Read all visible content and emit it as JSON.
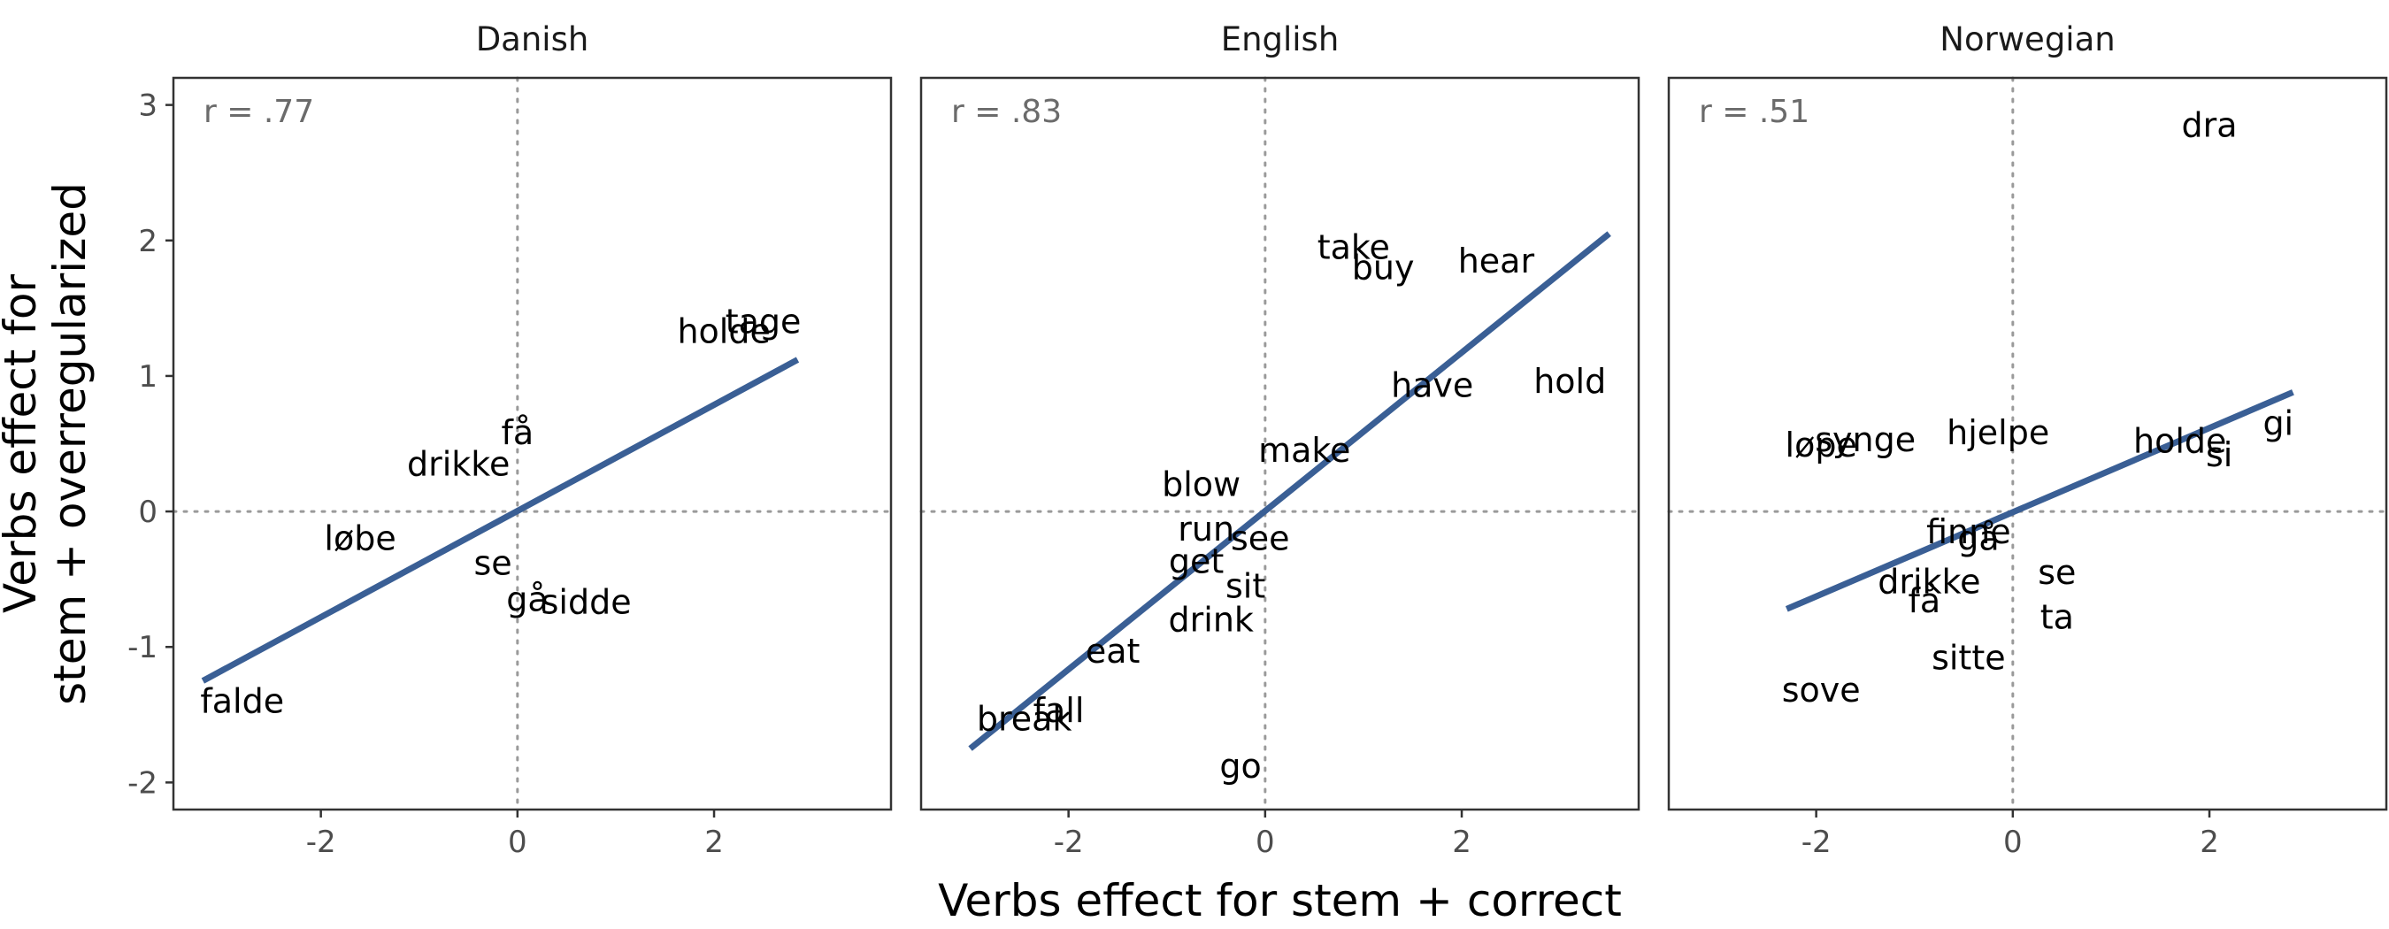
{
  "chart_data": {
    "type": "scatter",
    "xlabel": "Verbs effect for stem + correct",
    "ylabel": [
      "Verbs effect for",
      "stem + overregularized"
    ],
    "xlim": [
      -3.5,
      3.8
    ],
    "ylim": [
      -2.2,
      3.2
    ],
    "x_ticks": [
      -2,
      0,
      2
    ],
    "y_ticks": [
      -2,
      -1,
      0,
      1,
      2,
      3
    ],
    "tick_labels": {
      "-2": "-2",
      "-1": "-1",
      "0": "0",
      "1": "1",
      "2": "2",
      "3": "3"
    },
    "grid": false,
    "reference_lines": [
      0
    ],
    "colors": {
      "fit_line": "#3a5f95",
      "reference_line": "#9a9a9a",
      "panel_border": "#333333"
    },
    "panels": [
      {
        "name": "Danish",
        "r_label": "r = .77",
        "fit": {
          "x": [
            -3.2,
            2.85
          ],
          "y": [
            -1.25,
            1.12
          ]
        },
        "points": [
          {
            "label": "tage",
            "x": 2.5,
            "y": 1.4
          },
          {
            "label": "holde",
            "x": 2.1,
            "y": 1.33
          },
          {
            "label": "få",
            "x": 0.0,
            "y": 0.58
          },
          {
            "label": "drikke",
            "x": -0.6,
            "y": 0.35
          },
          {
            "label": "løbe",
            "x": -1.6,
            "y": -0.2
          },
          {
            "label": "se",
            "x": -0.25,
            "y": -0.38
          },
          {
            "label": "gå",
            "x": 0.1,
            "y": -0.65
          },
          {
            "label": "sidde",
            "x": 0.7,
            "y": -0.67
          },
          {
            "label": "falde",
            "x": -2.8,
            "y": -1.4
          }
        ]
      },
      {
        "name": "English",
        "r_label": "r = .83",
        "fit": {
          "x": [
            -3.0,
            3.5
          ],
          "y": [
            -1.75,
            2.05
          ]
        },
        "points": [
          {
            "label": "take",
            "x": 0.9,
            "y": 1.95
          },
          {
            "label": "buy",
            "x": 1.2,
            "y": 1.8
          },
          {
            "label": "hear",
            "x": 2.35,
            "y": 1.85
          },
          {
            "label": "have",
            "x": 1.7,
            "y": 0.93
          },
          {
            "label": "hold",
            "x": 3.1,
            "y": 0.96
          },
          {
            "label": "make",
            "x": 0.4,
            "y": 0.45
          },
          {
            "label": "blow",
            "x": -0.65,
            "y": 0.2
          },
          {
            "label": "run",
            "x": -0.6,
            "y": -0.13
          },
          {
            "label": "see",
            "x": -0.05,
            "y": -0.2
          },
          {
            "label": "get",
            "x": -0.7,
            "y": -0.37
          },
          {
            "label": "sit",
            "x": -0.2,
            "y": -0.55
          },
          {
            "label": "drink",
            "x": -0.55,
            "y": -0.8
          },
          {
            "label": "eat",
            "x": -1.55,
            "y": -1.03
          },
          {
            "label": "fall",
            "x": -2.1,
            "y": -1.47
          },
          {
            "label": "break",
            "x": -2.45,
            "y": -1.53
          },
          {
            "label": "go",
            "x": -0.25,
            "y": -1.88
          }
        ]
      },
      {
        "name": "Norwegian",
        "r_label": "r = .51",
        "fit": {
          "x": [
            -2.3,
            2.85
          ],
          "y": [
            -0.72,
            0.88
          ]
        },
        "points": [
          {
            "label": "dra",
            "x": 2.0,
            "y": 2.85
          },
          {
            "label": "gi",
            "x": 2.7,
            "y": 0.65
          },
          {
            "label": "hjelpe",
            "x": -0.15,
            "y": 0.58
          },
          {
            "label": "holde",
            "x": 1.7,
            "y": 0.52
          },
          {
            "label": "si",
            "x": 2.1,
            "y": 0.42
          },
          {
            "label": "løpe",
            "x": -1.95,
            "y": 0.49
          },
          {
            "label": "synge",
            "x": -1.5,
            "y": 0.53
          },
          {
            "label": "finne",
            "x": -0.45,
            "y": -0.15
          },
          {
            "label": "gå",
            "x": -0.35,
            "y": -0.2
          },
          {
            "label": "se",
            "x": 0.45,
            "y": -0.45
          },
          {
            "label": "drikke",
            "x": -0.85,
            "y": -0.52
          },
          {
            "label": "få",
            "x": -0.9,
            "y": -0.66
          },
          {
            "label": "ta",
            "x": 0.45,
            "y": -0.78
          },
          {
            "label": "sitte",
            "x": -0.45,
            "y": -1.08
          },
          {
            "label": "sove",
            "x": -1.95,
            "y": -1.32
          }
        ]
      }
    ]
  }
}
